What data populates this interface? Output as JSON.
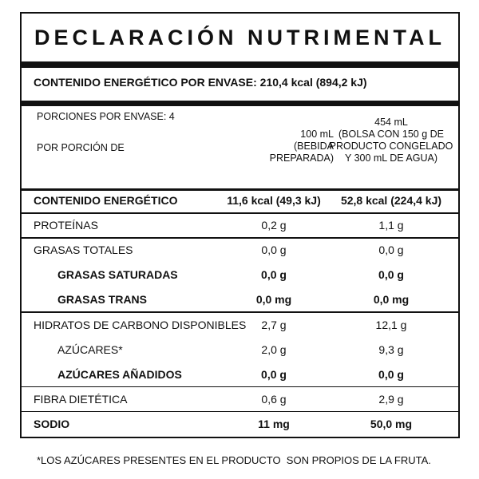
{
  "title": "DECLARACIÓN NUTRIMENTAL",
  "energy_per_package": "CONTENIDO ENERGÉTICO POR ENVASE: 210,4 kcal (894,2 kJ)",
  "portions": "PORCIONES POR ENVASE: 4",
  "per_portion": "POR PORCIÓN DE",
  "columns": [
    "100 mL\n(BEBIDA\nPREPARADA)",
    "454 mL\n(BOLSA CON 150 g DE\nPRODUCTO CONGELADO\nY 300 mL DE AGUA)"
  ],
  "rows": [
    [
      "CONTENIDO ENERGÉTICO",
      "11,6 kcal (49,3 kJ)",
      "52,8 kcal (224,4 kJ)"
    ],
    [
      "PROTEÍNAS",
      "0,2 g",
      "1,1 g"
    ],
    [
      "GRASAS TOTALES",
      "0,0 g",
      "0,0 g"
    ],
    [
      "GRASAS SATURADAS",
      "0,0 g",
      "0,0 g"
    ],
    [
      "GRASAS TRANS",
      "0,0 mg",
      "0,0 mg"
    ],
    [
      "HIDRATOS DE CARBONO DISPONIBLES",
      "2,7 g",
      "12,1 g"
    ],
    [
      "AZÚCARES*",
      "2,0 g",
      "9,3 g"
    ],
    [
      "AZÚCARES AÑADIDOS",
      "0,0 g",
      "0,0 g"
    ],
    [
      "FIBRA DIETÉTICA",
      "0,6 g",
      "2,9 g"
    ],
    [
      "SODIO",
      "11 mg",
      "50,0 mg"
    ]
  ],
  "footnote": "*LOS AZÚCARES PRESENTES EN EL PRODUCTO  SON PROPIOS DE LA FRUTA."
}
